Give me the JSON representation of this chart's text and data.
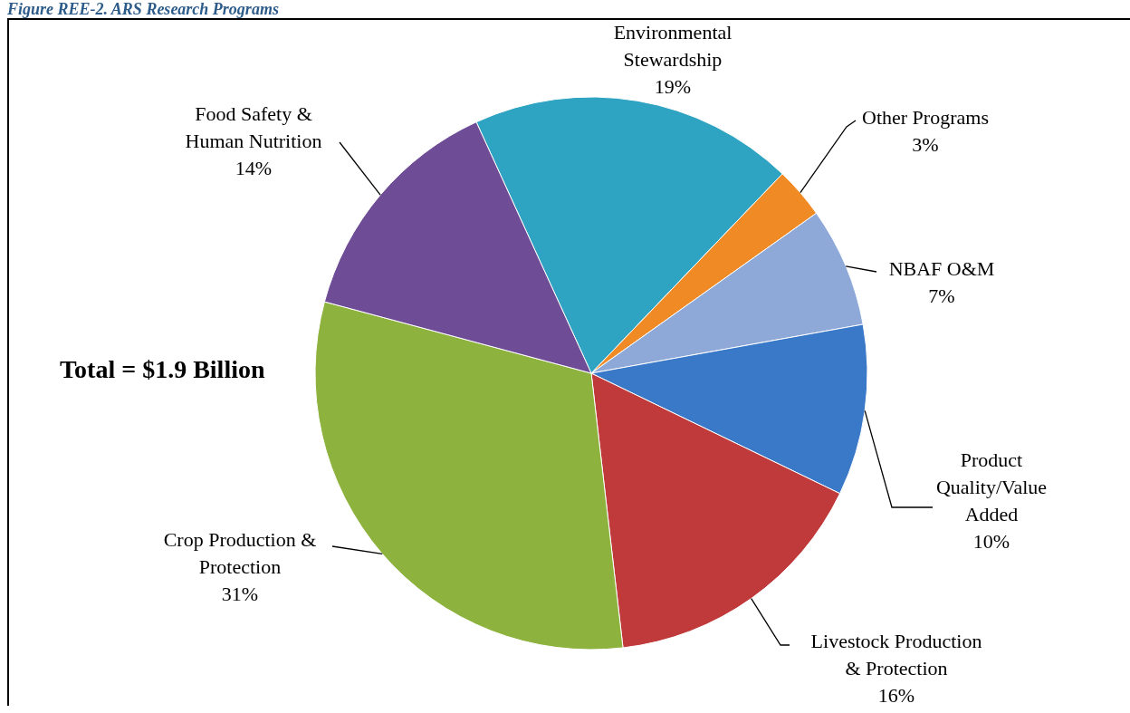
{
  "chart_data": {
    "type": "pie",
    "title": "Figure REE-2. ARS Research Programs",
    "categories": [
      "Environmental Stewardship",
      "Other Programs",
      "NBAF O&M",
      "Product Quality/Value Added",
      "Livestock Production & Protection",
      "Crop Production & Protection",
      "Food Safety & Human Nutrition"
    ],
    "values": [
      19,
      3,
      7,
      10,
      16,
      31,
      14
    ],
    "value_labels": [
      "19%",
      "3%",
      "7%",
      "10%",
      "16%",
      "31%",
      "14%"
    ],
    "colors": [
      "#2ea3c2",
      "#f08a24",
      "#8ea9d8",
      "#3a78c8",
      "#c0393b",
      "#8db23e",
      "#6e4c96"
    ],
    "annotations": [
      "Total = $1.9 Billion"
    ],
    "legend": false
  }
}
